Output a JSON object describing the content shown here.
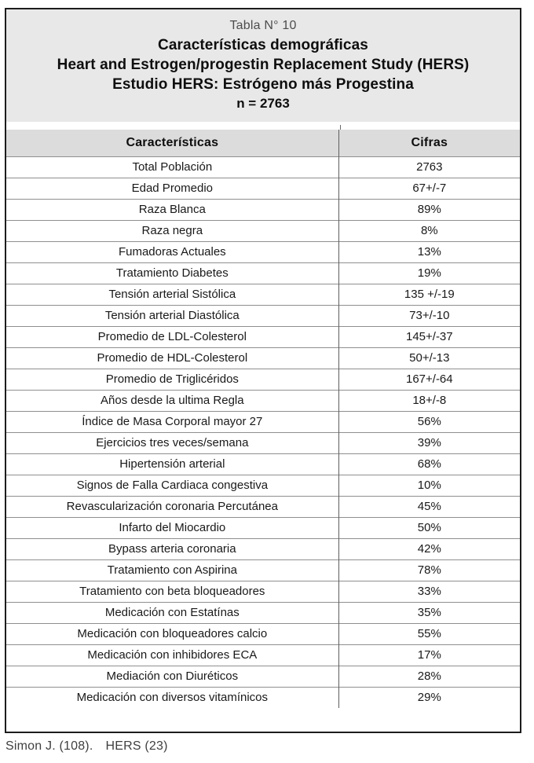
{
  "caption": {
    "lines": [
      "Tabla N° 10",
      "Características demográficas",
      "Heart and Estrogen/progestin Replacement Study (HERS)",
      "Estudio HERS: Estrógeno más Progestina",
      "n = 2763"
    ]
  },
  "table": {
    "headers": {
      "characteristic": "Características",
      "value": "Cifras"
    },
    "rows": [
      {
        "characteristic": "Total Población",
        "value": "2763"
      },
      {
        "characteristic": "Edad Promedio",
        "value": "67+/-7"
      },
      {
        "characteristic": "Raza Blanca",
        "value": "89%"
      },
      {
        "characteristic": "Raza negra",
        "value": "8%"
      },
      {
        "characteristic": "Fumadoras Actuales",
        "value": "13%"
      },
      {
        "characteristic": "Tratamiento Diabetes",
        "value": "19%"
      },
      {
        "characteristic": "Tensión arterial Sistólica",
        "value": "135 +/-19"
      },
      {
        "characteristic": "Tensión arterial Diastólica",
        "value": "73+/-10"
      },
      {
        "characteristic": "Promedio de LDL-Colesterol",
        "value": "145+/-37"
      },
      {
        "characteristic": "Promedio de HDL-Colesterol",
        "value": "50+/-13"
      },
      {
        "characteristic": "Promedio de Triglicéridos",
        "value": "167+/-64"
      },
      {
        "characteristic": "Años desde la ultima Regla",
        "value": "18+/-8"
      },
      {
        "characteristic": "Índice de Masa Corporal mayor 27",
        "value": "56%"
      },
      {
        "characteristic": "Ejercicios tres veces/semana",
        "value": "39%"
      },
      {
        "characteristic": "Hipertensión arterial",
        "value": "68%"
      },
      {
        "characteristic": "Signos de Falla Cardiaca congestiva",
        "value": "10%"
      },
      {
        "characteristic": "Revascularización coronaria Percutánea",
        "value": "45%"
      },
      {
        "characteristic": "Infarto del Miocardio",
        "value": "50%"
      },
      {
        "characteristic": "Bypass arteria coronaria",
        "value": "42%"
      },
      {
        "characteristic": "Tratamiento con Aspirina",
        "value": "78%"
      },
      {
        "characteristic": "Tratamiento con beta bloqueadores",
        "value": "33%"
      },
      {
        "characteristic": "Medicación con Estatínas",
        "value": "35%"
      },
      {
        "characteristic": "Medicación con bloqueadores calcio",
        "value": "55%"
      },
      {
        "characteristic": "Medicación con inhibidores ECA",
        "value": "17%"
      },
      {
        "characteristic": "Mediación con Diuréticos",
        "value": "28%"
      },
      {
        "characteristic": "Medicación con diversos vitamínicos",
        "value": "29%"
      }
    ]
  },
  "footer": {
    "citation": "Simon J. (108).",
    "source": "HERS (23)"
  },
  "colors": {
    "caption_background": "#e8e8e8",
    "header_background": "#dcdcdc",
    "frame_border": "#1c1c1c",
    "row_separator": "#8f8f8f",
    "text": "#191919"
  }
}
